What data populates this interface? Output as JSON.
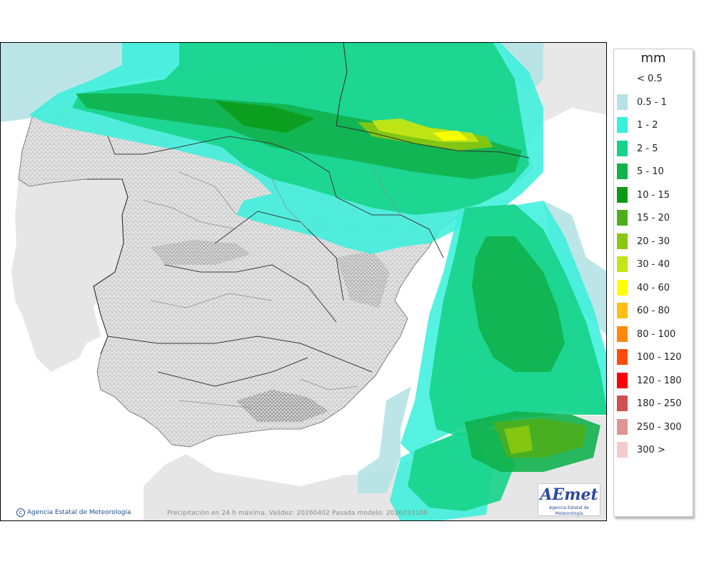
{
  "map": {
    "credit": "Agencia Estatal de Meteorología",
    "validity": "Precipitación en 24 h máxima. Validez: 20260402 Pasada modelo: 2026033100",
    "logo": {
      "name": "AEmet",
      "subtitle": "Agencia Estatal de Meteorología"
    }
  },
  "legend": {
    "unit": "mm",
    "items": [
      {
        "label": "< 0.5",
        "color": "#ffffff"
      },
      {
        "label": "0.5 - 1",
        "color": "#b5e2e6"
      },
      {
        "label": "1 - 2",
        "color": "#38f0dc"
      },
      {
        "label": "2 - 5",
        "color": "#16d38a"
      },
      {
        "label": "5 - 10",
        "color": "#12b14c"
      },
      {
        "label": "10 - 15",
        "color": "#0b9a13"
      },
      {
        "label": "15 - 20",
        "color": "#4cae1c"
      },
      {
        "label": "20 - 30",
        "color": "#88c712"
      },
      {
        "label": "30 - 40",
        "color": "#c2e616"
      },
      {
        "label": "40 - 60",
        "color": "#ffff00"
      },
      {
        "label": "60 - 80",
        "color": "#ffbe14"
      },
      {
        "label": "80 - 100",
        "color": "#ff8810"
      },
      {
        "label": "100 - 120",
        "color": "#ff4c0a"
      },
      {
        "label": "120 - 180",
        "color": "#ff0000"
      },
      {
        "label": "180 - 250",
        "color": "#cf5050"
      },
      {
        "label": "250 - 300",
        "color": "#df9494"
      },
      {
        "label": "300 >",
        "color": "#f2cccc"
      }
    ]
  }
}
